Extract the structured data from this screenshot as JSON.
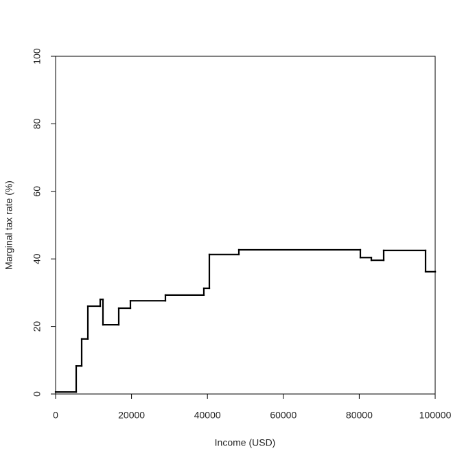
{
  "chart_data": {
    "type": "step",
    "x_label": "Income (USD)",
    "y_label": "Marginal tax rate (%)",
    "x": [
      0,
      5425,
      6872,
      8500,
      11754,
      12477,
      16637,
      19711,
      28933,
      39060,
      40506,
      48282,
      80289,
      83183,
      86438,
      97468,
      100000
    ],
    "values": [
      0.6,
      8.3,
      16.3,
      26.0,
      28.0,
      20.5,
      25.4,
      27.6,
      29.3,
      31.3,
      41.3,
      42.7,
      40.4,
      39.6,
      42.5,
      36.2,
      36.2
    ],
    "color": "#000000",
    "xlim": [
      0,
      100000
    ],
    "xticks": [
      0,
      20000,
      40000,
      60000,
      80000,
      100000
    ],
    "ylim": [
      0,
      100
    ],
    "yticks": [
      0,
      20,
      40,
      60,
      80,
      100
    ]
  }
}
